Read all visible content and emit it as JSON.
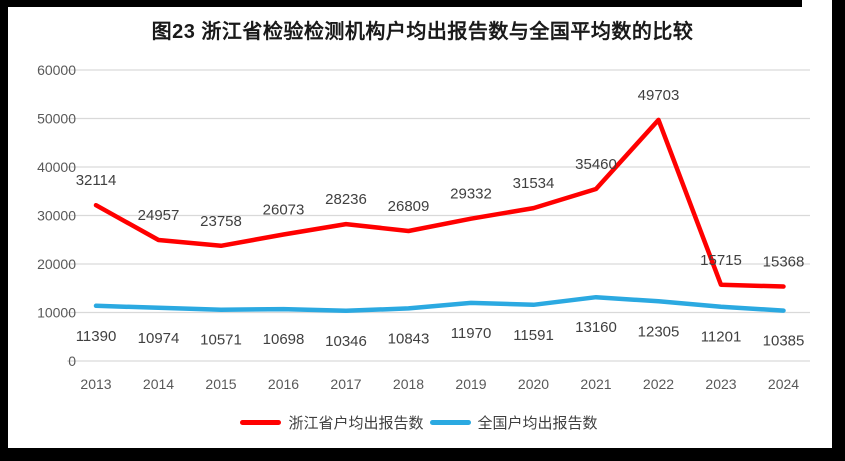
{
  "title": "图23  浙江省检验检测机构户均出报告数与全国平均数的比较",
  "colors": {
    "zhejiang_line": "#FF0000",
    "national_line": "#2BA9E1",
    "gridline": "#D9D9D9",
    "axis_text": "#595959",
    "data_label_text": "#404040",
    "title_text": "#1A1A1A",
    "frame": "#000000"
  },
  "chart_data": {
    "type": "line",
    "title": "图23  浙江省检验检测机构户均出报告数与全国平均数的比较",
    "categories": [
      "2013",
      "2014",
      "2015",
      "2016",
      "2017",
      "2018",
      "2019",
      "2020",
      "2021",
      "2022",
      "2023",
      "2024"
    ],
    "series": [
      {
        "name": "浙江省户均出报告数",
        "color": "#FF0000",
        "values": [
          32114,
          24957,
          23758,
          26073,
          28236,
          26809,
          29332,
          31534,
          35460,
          49703,
          15715,
          15368
        ],
        "label_position": "above"
      },
      {
        "name": "全国户均出报告数",
        "color": "#2BA9E1",
        "values": [
          11390,
          10974,
          10571,
          10698,
          10346,
          10843,
          11970,
          11591,
          13160,
          12305,
          11201,
          10385
        ],
        "label_position": "below"
      }
    ],
    "xlabel": "",
    "ylabel": "",
    "ylim": [
      0,
      60000
    ],
    "yticks": [
      0,
      10000,
      20000,
      30000,
      40000,
      50000,
      60000
    ],
    "grid": true,
    "data_labels": true,
    "legend_position": "bottom"
  }
}
